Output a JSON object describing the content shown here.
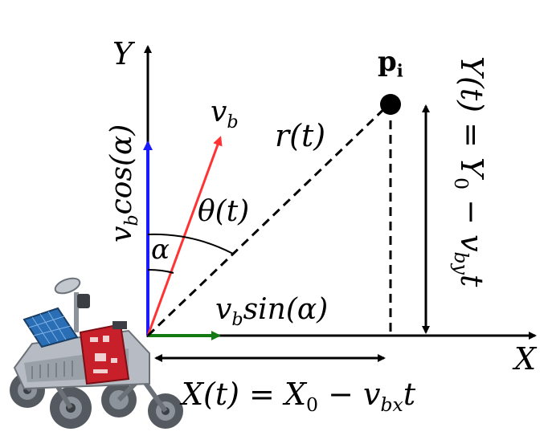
{
  "axes": {
    "x_label": "X",
    "y_label": "Y"
  },
  "point": {
    "label_main": "p",
    "label_sub": "i"
  },
  "vectors": {
    "vb_main": "v",
    "vb_sub": "b",
    "vb_cos_main": "v",
    "vb_cos_sub": "b",
    "vb_cos_rest": "cos(α)",
    "vb_sin_main": "v",
    "vb_sin_sub": "b",
    "vb_sin_rest": "sin(α)"
  },
  "distances": {
    "r": "r(t)",
    "theta": "θ(t)",
    "alpha": "α"
  },
  "equations": {
    "x_eq_pre": "X(t) = X",
    "x_eq_sub0": "0",
    "x_eq_mid": " − v",
    "x_eq_sub_bx": "bx",
    "x_eq_post": "t",
    "y_eq_pre": "Y(t) = Y",
    "y_eq_sub0": "0",
    "y_eq_mid": " − v",
    "y_eq_sub_by": "by",
    "y_eq_post": "t"
  },
  "colors": {
    "axis": "#000000",
    "vy": "#1a1aff",
    "vx": "#137a13",
    "vb": "#ff3333",
    "rover_panel": "#2a6fb5",
    "rover_board": "#c8202a",
    "rover_body": "#b7bcc4",
    "wheel": "#555a60"
  },
  "icons": {
    "rover": "rover-robot-icon"
  }
}
